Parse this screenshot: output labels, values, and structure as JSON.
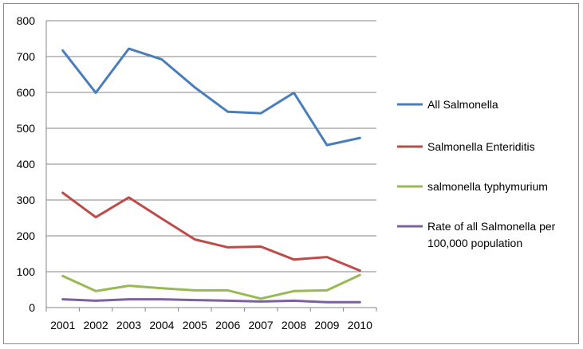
{
  "chart_data": {
    "type": "line",
    "categories": [
      "2001",
      "2002",
      "2003",
      "2004",
      "2005",
      "2006",
      "2007",
      "2008",
      "2009",
      "2010"
    ],
    "ylim": [
      0,
      800
    ],
    "yticks": [
      0,
      100,
      200,
      300,
      400,
      500,
      600,
      700,
      800
    ],
    "grid": true,
    "legend_position": "right",
    "series": [
      {
        "name": "All Salmonella",
        "color": "#4a7ebb",
        "values": [
          717,
          599,
          722,
          692,
          614,
          546,
          542,
          599,
          453,
          473
        ]
      },
      {
        "name": "Salmonella Enteriditis",
        "color": "#be4b48",
        "values": [
          320,
          252,
          307,
          248,
          190,
          168,
          170,
          134,
          141,
          103
        ]
      },
      {
        "name": "salmonella typhymurium",
        "color": "#98b954",
        "values": [
          88,
          46,
          61,
          54,
          48,
          48,
          25,
          46,
          48,
          91
        ]
      },
      {
        "name": "Rate of all Salmonella per 100,000 population",
        "color": "#7d60a0",
        "values": [
          23,
          19,
          23,
          23,
          21,
          19,
          17,
          19,
          15,
          15
        ],
        "legend_lines": [
          "Rate of all Salmonella per",
          "100,000 population"
        ]
      }
    ]
  }
}
